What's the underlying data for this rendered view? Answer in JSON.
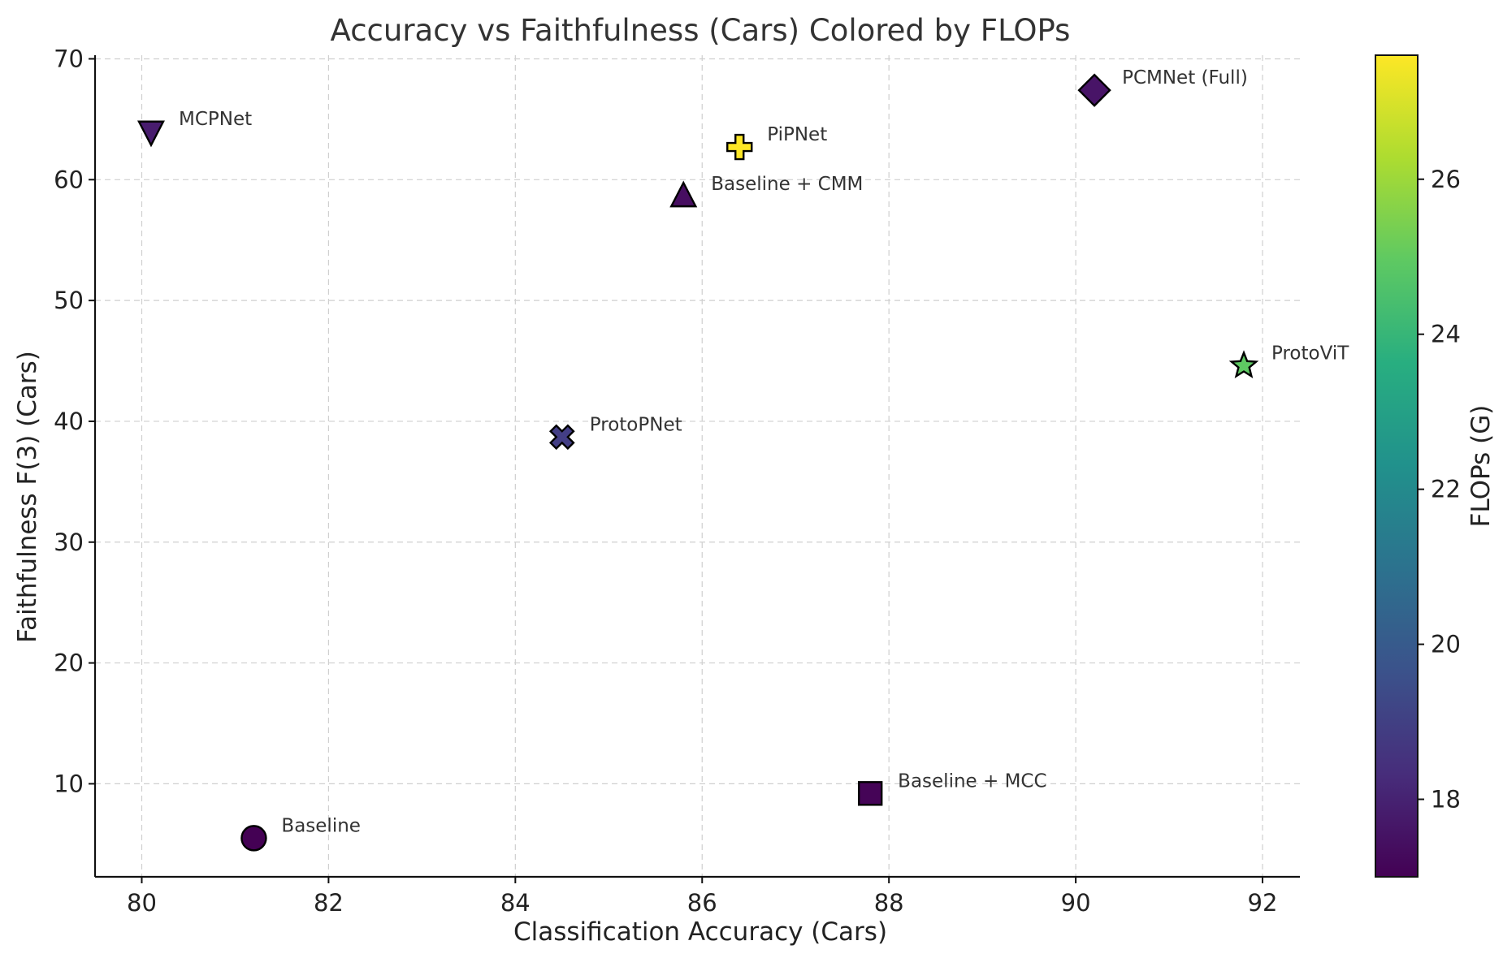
{
  "chart_data": {
    "type": "scatter",
    "title": "Accuracy vs Faithfulness (Cars) Colored by FLOPs",
    "xlabel": "Classification Accuracy (Cars)",
    "ylabel": "Faithfulness F(3) (Cars)",
    "xlim": [
      79.5,
      92.4
    ],
    "ylim": [
      2.3,
      70.3
    ],
    "xticks": [
      80,
      82,
      84,
      86,
      88,
      90,
      92
    ],
    "yticks": [
      10,
      20,
      30,
      40,
      50,
      60,
      70
    ],
    "grid": true,
    "colorbar": {
      "label": "FLOPs (G)",
      "range": [
        17.0,
        27.6
      ],
      "ticks": [
        18,
        20,
        22,
        24,
        26
      ],
      "colormap": "viridis"
    },
    "points": [
      {
        "label": "Baseline",
        "x": 81.2,
        "y": 5.5,
        "flops": 17.1,
        "marker": "circle",
        "color": "#440154"
      },
      {
        "label": "Baseline + MCC",
        "x": 87.8,
        "y": 9.2,
        "flops": 17.2,
        "marker": "square",
        "color": "#450457"
      },
      {
        "label": "Baseline + CMM",
        "x": 85.8,
        "y": 58.6,
        "flops": 17.5,
        "marker": "triangle-up",
        "color": "#470e61"
      },
      {
        "label": "PCMNet (Full)",
        "x": 90.2,
        "y": 67.4,
        "flops": 17.6,
        "marker": "diamond",
        "color": "#481467"
      },
      {
        "label": "MCPNet",
        "x": 80.1,
        "y": 64.0,
        "flops": 17.8,
        "marker": "triangle-down",
        "color": "#481c6e"
      },
      {
        "label": "ProtoPNet",
        "x": 84.5,
        "y": 38.7,
        "flops": 18.8,
        "marker": "x",
        "color": "#433e85"
      },
      {
        "label": "PiPNet",
        "x": 86.4,
        "y": 62.7,
        "flops": 27.6,
        "marker": "plus",
        "color": "#fde725"
      },
      {
        "label": "ProtoViT",
        "x": 91.8,
        "y": 44.6,
        "flops": 25.3,
        "marker": "star",
        "color": "#5ec962"
      }
    ]
  }
}
